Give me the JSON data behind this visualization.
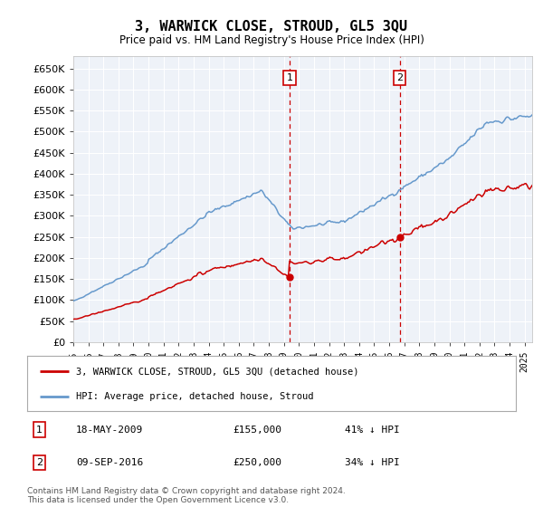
{
  "title": "3, WARWICK CLOSE, STROUD, GL5 3QU",
  "subtitle": "Price paid vs. HM Land Registry's House Price Index (HPI)",
  "hpi_color": "#6699cc",
  "price_color": "#cc0000",
  "sale1_year": 2009.38,
  "sale2_year": 2016.69,
  "sale1_price": 155000,
  "sale2_price": 250000,
  "transaction1": {
    "date": "18-MAY-2009",
    "price": 155000,
    "hpi_pct": "41% ↓ HPI"
  },
  "transaction2": {
    "date": "09-SEP-2016",
    "price": 250000,
    "hpi_pct": "34% ↓ HPI"
  },
  "legend_label_price": "3, WARWICK CLOSE, STROUD, GL5 3QU (detached house)",
  "legend_label_hpi": "HPI: Average price, detached house, Stroud",
  "footer": "Contains HM Land Registry data © Crown copyright and database right 2024.\nThis data is licensed under the Open Government Licence v3.0.",
  "xmin": 1995.0,
  "xmax": 2025.5,
  "ymin": 0,
  "ymax": 680000,
  "yticks": [
    0,
    50000,
    100000,
    150000,
    200000,
    250000,
    300000,
    350000,
    400000,
    450000,
    500000,
    550000,
    600000,
    650000
  ],
  "background_color": "#eef2f8"
}
